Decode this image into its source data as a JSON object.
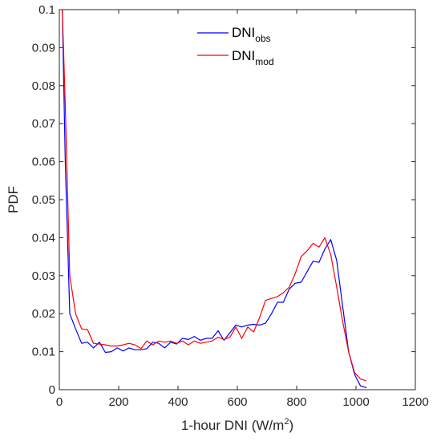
{
  "chart_data": {
    "type": "line",
    "xlabel_main": "1-hour DNI (W/m",
    "xlabel_sup": "2",
    "xlabel_tail": ")",
    "ylabel": "PDF",
    "xlim": [
      0,
      1200
    ],
    "ylim": [
      0,
      0.1
    ],
    "xticks": [
      0,
      200,
      400,
      600,
      800,
      1000,
      1200
    ],
    "xtick_labels": [
      "0",
      "200",
      "400",
      "600",
      "800",
      "1000",
      "1200"
    ],
    "yticks": [
      0,
      0.01,
      0.02,
      0.03,
      0.04,
      0.05,
      0.06,
      0.07,
      0.08,
      0.09,
      0.1
    ],
    "ytick_labels": [
      "0",
      "0.01",
      "0.02",
      "0.03",
      "0.04",
      "0.05",
      "0.06",
      "0.07",
      "0.08",
      "0.09",
      "0.1"
    ],
    "grid": false,
    "legend_position": "top-center",
    "series": [
      {
        "name_main": "DNI",
        "name_sub": "obs",
        "color": "#0000ff",
        "x": [
          10,
          20,
          35,
          55,
          75,
          95,
          115,
          135,
          155,
          175,
          195,
          215,
          235,
          255,
          275,
          295,
          315,
          335,
          355,
          375,
          395,
          415,
          435,
          455,
          475,
          495,
          515,
          535,
          555,
          575,
          595,
          615,
          635,
          655,
          675,
          695,
          715,
          735,
          755,
          775,
          795,
          815,
          835,
          855,
          875,
          895,
          915,
          935,
          955,
          975,
          995,
          1015,
          1035
        ],
        "y": [
          0.1,
          0.06,
          0.02,
          0.016,
          0.0122,
          0.0125,
          0.011,
          0.0125,
          0.0098,
          0.01,
          0.011,
          0.0102,
          0.011,
          0.0105,
          0.0105,
          0.0108,
          0.0125,
          0.0122,
          0.011,
          0.0125,
          0.012,
          0.0135,
          0.0132,
          0.014,
          0.013,
          0.0135,
          0.0135,
          0.0155,
          0.013,
          0.015,
          0.017,
          0.0165,
          0.017,
          0.0172,
          0.017,
          0.0175,
          0.02,
          0.023,
          0.023,
          0.0265,
          0.028,
          0.0283,
          0.031,
          0.0338,
          0.0335,
          0.037,
          0.0395,
          0.034,
          0.022,
          0.01,
          0.004,
          0.001,
          0.0005
        ]
      },
      {
        "name_main": "DNI",
        "name_sub": "mod",
        "color": "#ff0000",
        "x": [
          10,
          20,
          35,
          55,
          75,
          95,
          115,
          135,
          155,
          175,
          195,
          215,
          235,
          255,
          275,
          295,
          315,
          335,
          355,
          375,
          395,
          415,
          435,
          455,
          475,
          495,
          515,
          535,
          555,
          575,
          595,
          615,
          635,
          655,
          675,
          695,
          715,
          735,
          755,
          775,
          795,
          815,
          835,
          855,
          875,
          895,
          915,
          935,
          955,
          975,
          995,
          1015,
          1035
        ],
        "y": [
          0.1,
          0.075,
          0.03,
          0.02,
          0.016,
          0.0158,
          0.0122,
          0.012,
          0.0118,
          0.0115,
          0.0115,
          0.0118,
          0.0122,
          0.0118,
          0.0108,
          0.0128,
          0.0118,
          0.0128,
          0.0125,
          0.0128,
          0.0122,
          0.0128,
          0.0118,
          0.0128,
          0.0122,
          0.0125,
          0.0128,
          0.0138,
          0.0132,
          0.0138,
          0.0165,
          0.0135,
          0.0165,
          0.0152,
          0.019,
          0.0235,
          0.024,
          0.0245,
          0.0255,
          0.027,
          0.0305,
          0.035,
          0.0365,
          0.0385,
          0.0375,
          0.04,
          0.0355,
          0.027,
          0.018,
          0.01,
          0.0045,
          0.0028,
          0.0023
        ]
      }
    ]
  }
}
